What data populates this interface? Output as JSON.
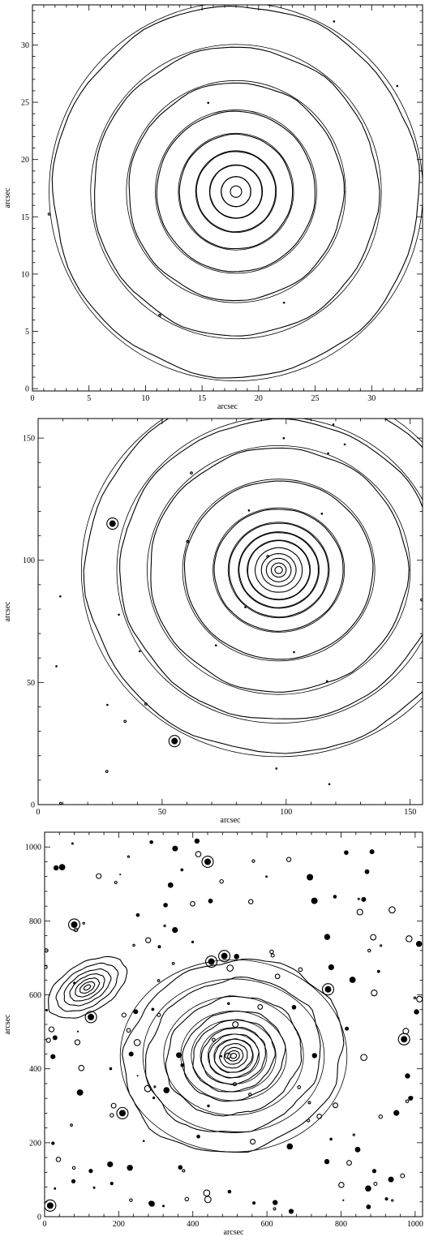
{
  "chart_data": [
    {
      "type": "contour",
      "xlabel": "arcsec",
      "ylabel": "arcsec",
      "xlim": [
        0,
        34.5
      ],
      "ylim": [
        -0.2,
        33.5
      ],
      "xticks": [
        0,
        5,
        10,
        15,
        20,
        25,
        30
      ],
      "yticks": [
        0,
        5,
        10,
        15,
        20,
        25,
        30
      ],
      "center": [
        18.0,
        17.2
      ],
      "axis_ratio": 1.0,
      "rings_major": [
        0.5,
        1.3,
        2.3,
        3.5,
        5.0,
        7.0,
        9.5,
        12.6,
        16.2
      ],
      "bright_sources": []
    },
    {
      "type": "contour",
      "xlabel": "arcsec",
      "ylabel": "arcsec",
      "xlim": [
        0,
        155
      ],
      "ylim": [
        0,
        158
      ],
      "xticks": [
        0,
        50,
        100,
        150
      ],
      "yticks": [
        0,
        50,
        100,
        150
      ],
      "center": [
        97,
        96
      ],
      "axis_ratio": 0.96,
      "rings_major": [
        1.5,
        3,
        5,
        7,
        9.5,
        12.5,
        16,
        20,
        26,
        38,
        52,
        64,
        78
      ],
      "bright_sources": [
        [
          30,
          115
        ],
        [
          55,
          26
        ]
      ]
    },
    {
      "type": "contour",
      "xlabel": "arcsec",
      "ylabel": "arcsec",
      "xlim": [
        0,
        1020
      ],
      "ylim": [
        0,
        1040
      ],
      "xticks": [
        0,
        200,
        400,
        600,
        800,
        1000
      ],
      "yticks": [
        0,
        200,
        400,
        600,
        800,
        1000
      ],
      "center": [
        510,
        435
      ],
      "axis_ratio": 0.85,
      "rings_major": [
        8,
        16,
        26,
        38,
        52,
        68,
        88,
        112,
        140,
        185,
        240,
        300
      ],
      "companion": {
        "center": [
          115,
          620
        ],
        "rings_major": [
          10,
          22,
          36,
          52,
          70,
          92,
          118
        ]
      },
      "bright_sources": [
        [
          440,
          960
        ],
        [
          485,
          705
        ],
        [
          80,
          790
        ],
        [
          970,
          480
        ],
        [
          15,
          30
        ],
        [
          125,
          540
        ],
        [
          765,
          615
        ],
        [
          210,
          280
        ],
        [
          450,
          690
        ]
      ]
    }
  ]
}
